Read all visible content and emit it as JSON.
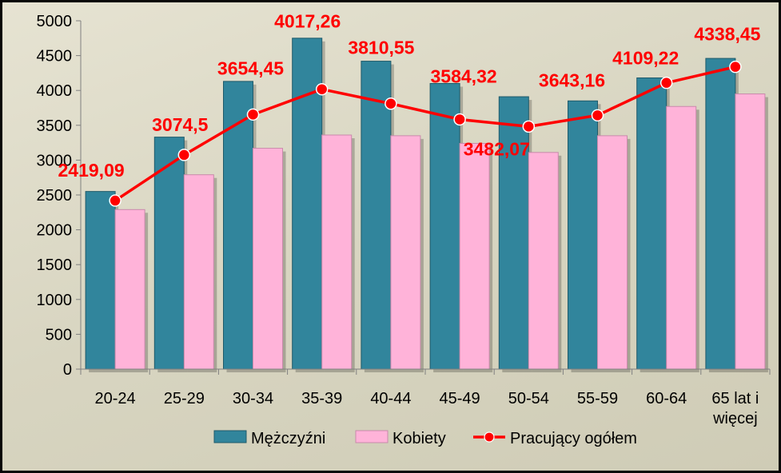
{
  "chart_data": {
    "type": "bar",
    "categories": [
      "20-24",
      "25-29",
      "30-34",
      "35-39",
      "40-44",
      "45-49",
      "50-54",
      "55-59",
      "60-64",
      "65 lat i więcej"
    ],
    "category_lines": [
      [
        "20-24"
      ],
      [
        "25-29"
      ],
      [
        "30-34"
      ],
      [
        "35-39"
      ],
      [
        "40-44"
      ],
      [
        "45-49"
      ],
      [
        "50-54"
      ],
      [
        "55-59"
      ],
      [
        "60-64"
      ],
      [
        "65 lat i",
        "więcej"
      ]
    ],
    "series": [
      {
        "name": "Mężczyźni",
        "type": "bar",
        "color": "#31859c",
        "values": [
          2550,
          3330,
          4130,
          4750,
          4420,
          4100,
          3910,
          3850,
          4180,
          4460
        ]
      },
      {
        "name": "Kobiety",
        "type": "bar",
        "color": "#ffb3d9",
        "values": [
          2290,
          2790,
          3170,
          3360,
          3350,
          3240,
          3110,
          3350,
          3770,
          3950
        ]
      },
      {
        "name": "Pracujący ogółem",
        "type": "line",
        "color": "#ff0000",
        "values": [
          2419.09,
          3074.5,
          3654.45,
          4017.26,
          3810.55,
          3584.32,
          3482.07,
          3643.16,
          4109.22,
          4338.45
        ]
      }
    ],
    "data_labels": [
      "2419,09",
      "3074,5",
      "3654,45",
      "4017,26",
      "3810,55",
      "3584,32",
      "3482,07",
      "3643,16",
      "4109,22",
      "4338,45"
    ],
    "yticks": [
      "0",
      "500",
      "1000",
      "1500",
      "2000",
      "2500",
      "3000",
      "3500",
      "4000",
      "4500",
      "5000"
    ],
    "ylim": [
      0,
      5000
    ],
    "grid": false,
    "legend_position": "bottom"
  }
}
